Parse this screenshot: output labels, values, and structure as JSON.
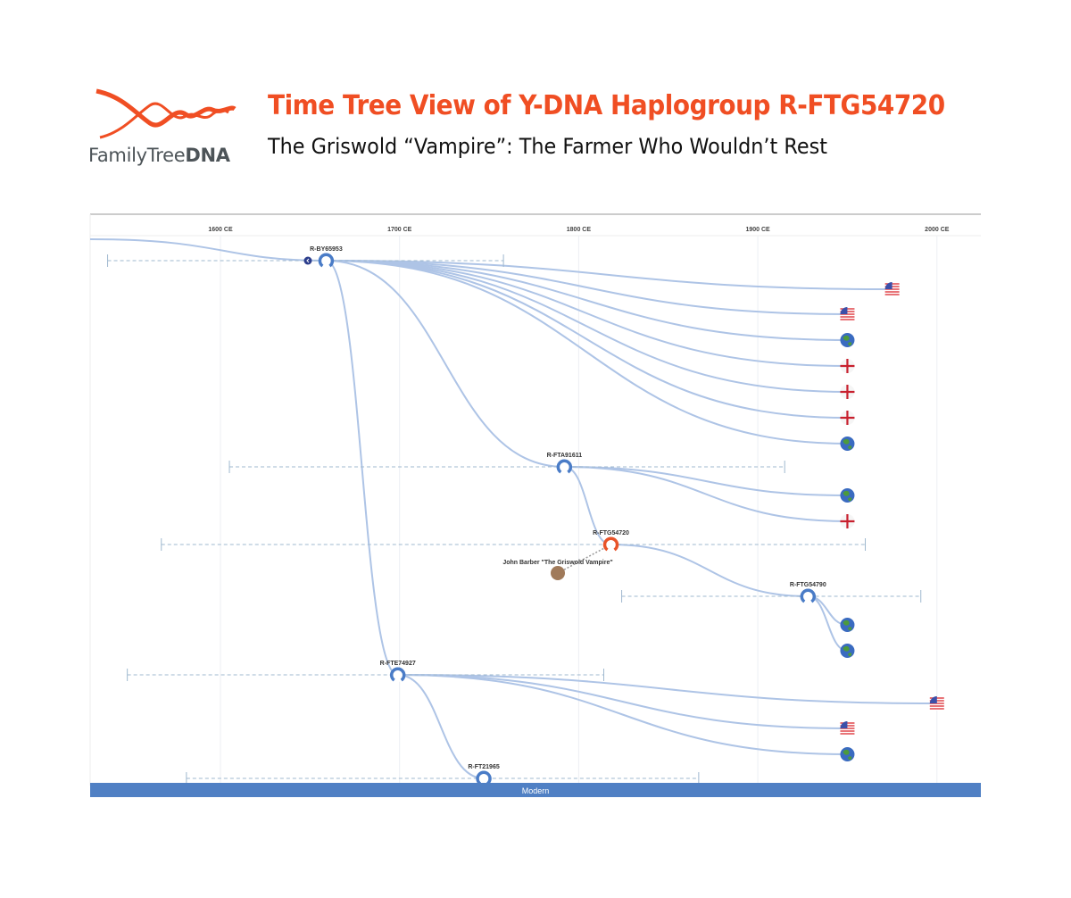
{
  "header": {
    "logo_text_light": "FamilyTree",
    "logo_text_bold": "DNA",
    "title": "Time Tree View of Y-DNA Haplogroup R-FTG54720",
    "subtitle": "The Griswold “Vampire”: The Farmer Who Wouldn’t Rest"
  },
  "colors": {
    "brand": "#f04e23",
    "branch": "#aec4e6",
    "node": "#4a7cc7",
    "highlight": "#e8542a",
    "modern_bar": "#5080c4"
  },
  "axis": {
    "ticks": [
      {
        "year": 1600,
        "label": "1600 CE"
      },
      {
        "year": 1700,
        "label": "1700 CE"
      },
      {
        "year": 1800,
        "label": "1800 CE"
      },
      {
        "year": 1900,
        "label": "1900 CE"
      },
      {
        "year": 2000,
        "label": "2000 CE"
      }
    ]
  },
  "modern_label": "Modern",
  "nodes": [
    {
      "id": "R-BY65953",
      "year": 1659,
      "range": [
        1537,
        1758
      ],
      "parent": null,
      "highlight": false
    },
    {
      "id": "R-FTA91611",
      "year": 1792,
      "range": [
        1605,
        1915
      ],
      "parent": "R-BY65953",
      "highlight": false
    },
    {
      "id": "R-FTG54720",
      "year": 1818,
      "range": [
        1567,
        1960
      ],
      "parent": "R-FTA91611",
      "highlight": true
    },
    {
      "id": "R-FTG54790",
      "year": 1928,
      "range": [
        1824,
        1991
      ],
      "parent": "R-FTG54720",
      "highlight": false
    },
    {
      "id": "R-FTE74927",
      "year": 1699,
      "range": [
        1548,
        1814
      ],
      "parent": "R-BY65953",
      "highlight": false
    },
    {
      "id": "R-FT21965",
      "year": 1747,
      "range": [
        1581,
        1867
      ],
      "parent": "R-FTE74927",
      "highlight": false
    }
  ],
  "leaves": [
    {
      "parent": "R-BY65953",
      "year": 1975,
      "icon": "us-flag-icon"
    },
    {
      "parent": "R-BY65953",
      "year": 1950,
      "icon": "us-flag-icon"
    },
    {
      "parent": "R-BY65953",
      "year": 1950,
      "icon": "globe-icon"
    },
    {
      "parent": "R-BY65953",
      "year": 1950,
      "icon": "england-flag-icon"
    },
    {
      "parent": "R-BY65953",
      "year": 1950,
      "icon": "england-flag-icon"
    },
    {
      "parent": "R-BY65953",
      "year": 1950,
      "icon": "england-flag-icon"
    },
    {
      "parent": "R-BY65953",
      "year": 1950,
      "icon": "globe-icon"
    },
    {
      "parent": "R-FTA91611",
      "year": 1950,
      "icon": "globe-icon"
    },
    {
      "parent": "R-FTA91611",
      "year": 1950,
      "icon": "england-flag-icon"
    },
    {
      "parent": "R-FTG54790",
      "year": 1950,
      "icon": "globe-icon"
    },
    {
      "parent": "R-FTG54790",
      "year": 1950,
      "icon": "globe-icon"
    },
    {
      "parent": "R-FTE74927",
      "year": 2000,
      "icon": "us-flag-icon"
    },
    {
      "parent": "R-FTE74927",
      "year": 1950,
      "icon": "us-flag-icon"
    },
    {
      "parent": "R-FTE74927",
      "year": 1950,
      "icon": "globe-icon"
    }
  ],
  "person": {
    "name": "John Barber \"The Griswold Vampire\"",
    "node": "R-FTG54720"
  }
}
